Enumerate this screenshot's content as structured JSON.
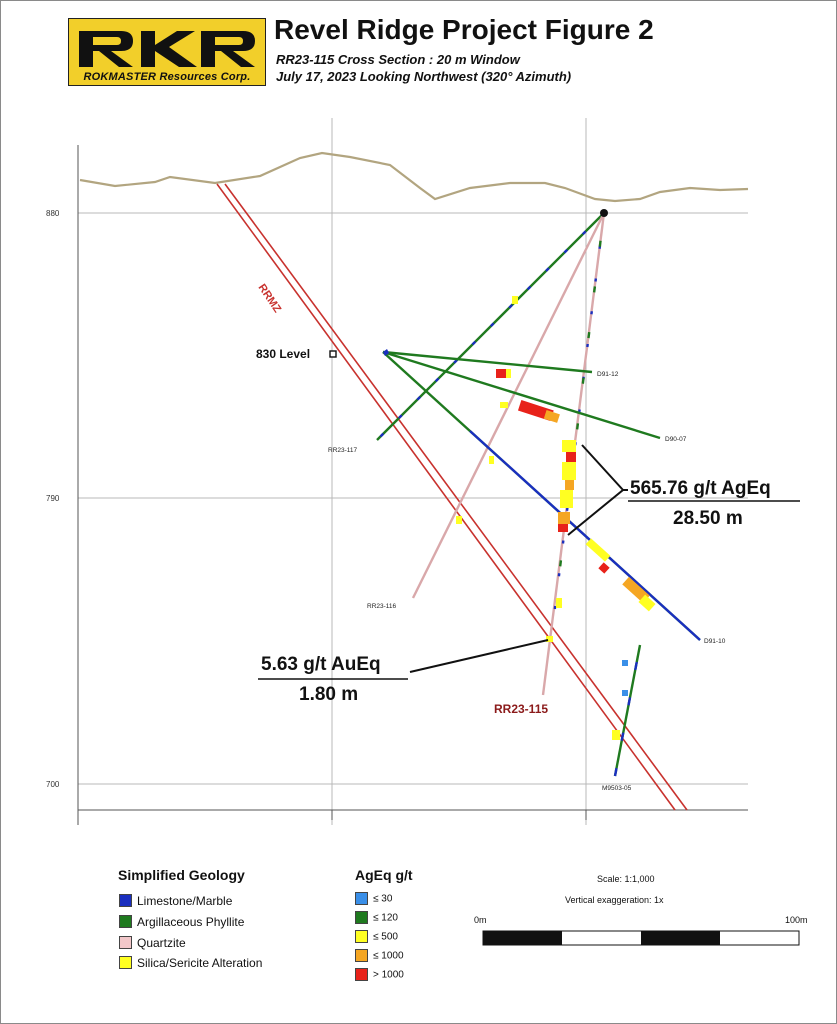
{
  "header": {
    "logo_text": "RKR",
    "logo_subtext": "ROKMASTER Resources Corp.",
    "title": "Revel Ridge Project Figure 2",
    "subtitle_line1": "RR23-115 Cross Section : 20 m Window",
    "subtitle_line2": "July 17, 2023   Looking Northwest (320° Azimuth)"
  },
  "section": {
    "elevation_labels": [
      "880",
      "790",
      "700"
    ],
    "fault_label": "RRMZ",
    "level_label": "830 Level",
    "hole_labels": {
      "d9112": "D91-12",
      "d9007": "D90-07",
      "rr117": "RR23-117",
      "rr116": "RR23-116",
      "d9110": "D91-10",
      "rr115": "RR23-115",
      "m9503": "M9503-05"
    },
    "intercept_main_grade": "565.76 g/t AgEq",
    "intercept_main_width": "28.50 m",
    "intercept_lower_grade": "5.63 g/t AuEq",
    "intercept_lower_width": "1.80 m"
  },
  "legend": {
    "geology_title": "Simplified Geology",
    "geology_items": [
      {
        "label": "Limestone/Marble",
        "color": "#1a2fbf"
      },
      {
        "label": "Argillaceous Phyllite",
        "color": "#1f7a1f"
      },
      {
        "label": "Quartzite",
        "color": "#f2c7c9"
      },
      {
        "label": "Silica/Sericite Alteration",
        "color": "#ffff22"
      }
    ],
    "grade_title": "AgEq g/t",
    "grade_items": [
      {
        "label": "≤ 30",
        "color": "#3a8fe8"
      },
      {
        "label": "≤ 120",
        "color": "#1f7a1f"
      },
      {
        "label": "≤ 500",
        "color": "#ffff22"
      },
      {
        "label": "≤ 1000",
        "color": "#f5a623"
      },
      {
        "label": "> 1000",
        "color": "#e8221a"
      }
    ]
  },
  "scale": {
    "scale_text": "Scale: 1:1,000",
    "vertical_exaggeration": "Vertical exaggeration: 1x",
    "left_label": "0m",
    "right_label": "100m"
  },
  "colors": {
    "topography": "#b2a580",
    "fault": "#c8322e",
    "logo_background": "#f2cf2a"
  }
}
